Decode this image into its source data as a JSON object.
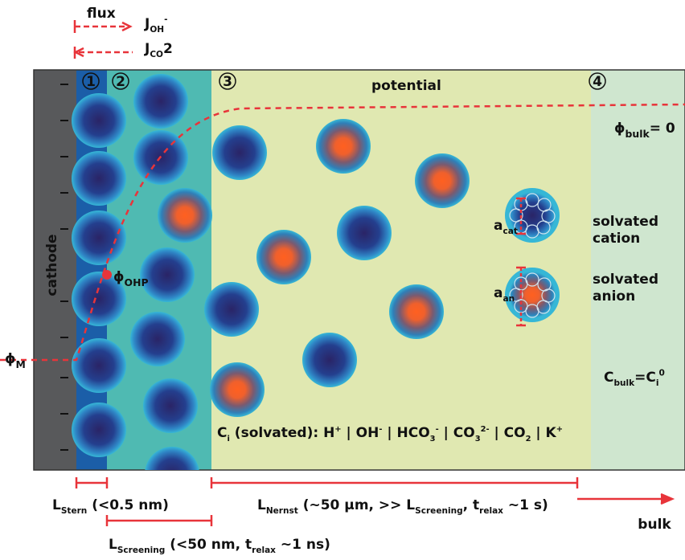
{
  "flux": "flux",
  "j_oh": [
    {
      "base": "J",
      "sub": "OH",
      "sup": "-"
    }
  ],
  "j_co2": [
    {
      "base": "J",
      "sub": "CO"
    },
    {
      "base": "2"
    }
  ],
  "zones": [
    "1",
    "2",
    "3",
    "4"
  ],
  "potential": "potential",
  "phi_bulk": [
    {
      "base": "ϕ",
      "sub": "bulk"
    },
    {
      "base": "= 0"
    }
  ],
  "cathode": "cathode",
  "phi_ohp": [
    {
      "base": "ϕ",
      "sub": "OHP"
    }
  ],
  "phi_m": [
    {
      "base": "ϕ",
      "sub": "M"
    }
  ],
  "a_cat": [
    {
      "base": "a",
      "sub": "cat"
    }
  ],
  "a_an": [
    {
      "base": "a",
      "sub": "an"
    }
  ],
  "cation_label": [
    "solvated",
    "cation"
  ],
  "anion_label": [
    "solvated",
    "anion"
  ],
  "c_bulk": [
    {
      "base": "C",
      "sub": "bulk"
    },
    {
      "base": "=C",
      "sub": "i",
      "sup": "0"
    }
  ],
  "species": [
    {
      "base": "C",
      "sub": "i"
    },
    {
      "base": " (solvated):  H",
      "sup": "+"
    },
    {
      "base": " | OH",
      "sup": "-"
    },
    {
      "base": " | HCO",
      "sub": "3",
      "sup": "-"
    },
    {
      "base": " | CO",
      "sub": "3",
      "sup": "2-"
    },
    {
      "base": " | CO",
      "sub": "2"
    },
    {
      "base": " | K",
      "sup": "+"
    }
  ],
  "l_stern": [
    {
      "base": "L",
      "sub": "Stern"
    },
    {
      "base": " (<0.5 nm)"
    }
  ],
  "l_screening": [
    {
      "base": "L",
      "sub": "Screening"
    },
    {
      "base": " (<50 nm, t",
      "sub": "relax"
    },
    {
      "base": " ~1 ns)"
    }
  ],
  "l_nernst": [
    {
      "base": "L",
      "sub": "Nernst"
    },
    {
      "base": " (~50 μm, >> L",
      "sub": "Screening"
    },
    {
      "base": ", t",
      "sub": "relax"
    },
    {
      "base": " ~1 s)"
    }
  ],
  "bulk": "bulk"
}
